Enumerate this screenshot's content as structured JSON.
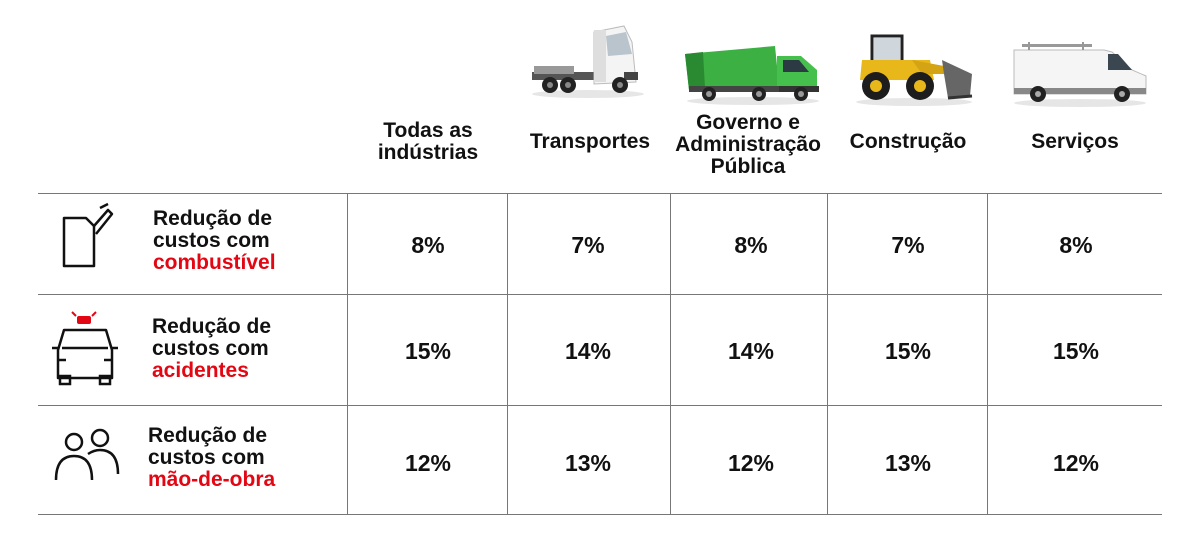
{
  "colors": {
    "accent": "#e30613",
    "text": "#111111",
    "grid": "#777777"
  },
  "chart_data": {
    "type": "table",
    "columns": [
      "Todas as\nindústrias",
      "Transportes",
      "Governo e\nAdministração\nPública",
      "Construção",
      "Serviços"
    ],
    "column_icons": [
      "",
      "truck-icon",
      "garbage-truck-icon",
      "wheel-loader-icon",
      "van-icon"
    ],
    "rows": [
      {
        "label_lines": [
          "Redução de",
          "custos com"
        ],
        "label_accent": "combustível",
        "icon": "fuel-can-icon",
        "values": [
          "8%",
          "7%",
          "8%",
          "7%",
          "8%"
        ]
      },
      {
        "label_lines": [
          "Redução de",
          "custos com"
        ],
        "label_accent": "acidentes",
        "icon": "car-siren-icon",
        "values": [
          "15%",
          "14%",
          "14%",
          "15%",
          "15%"
        ]
      },
      {
        "label_lines": [
          "Redução de",
          "custos com"
        ],
        "label_accent": "mão-de-obra",
        "icon": "people-icon",
        "values": [
          "12%",
          "13%",
          "12%",
          "13%",
          "12%"
        ]
      }
    ]
  }
}
